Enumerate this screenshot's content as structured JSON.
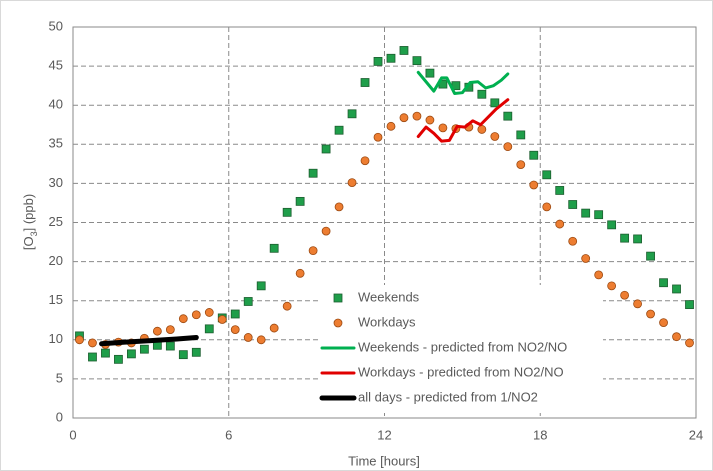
{
  "chart_data": {
    "type": "scatter",
    "xlabel": "Time [hours]",
    "ylabel": [
      "[O",
      "3",
      "] (ppb)"
    ],
    "xlim": [
      0,
      24
    ],
    "xticks": [
      0,
      6,
      12,
      18,
      24
    ],
    "ylim": [
      0,
      50
    ],
    "yticks": [
      0,
      5,
      10,
      15,
      20,
      25,
      30,
      35,
      40,
      45,
      50
    ],
    "grid": true,
    "legend": "lower center",
    "series": [
      {
        "name": "Weekends",
        "color": "#1f9e4a",
        "marker": "square",
        "x": [
          0.25,
          0.75,
          1.25,
          1.75,
          2.25,
          2.75,
          3.25,
          3.75,
          4.25,
          4.75,
          5.25,
          5.75,
          6.25,
          6.75,
          7.25,
          7.75,
          8.25,
          8.75,
          9.25,
          9.75,
          10.25,
          10.75,
          11.25,
          11.75,
          12.25,
          12.75,
          13.25,
          13.75,
          14.25,
          14.75,
          15.25,
          15.75,
          16.25,
          16.75,
          17.25,
          17.75,
          18.25,
          18.75,
          19.25,
          19.75,
          20.25,
          20.75,
          21.25,
          21.75,
          22.25,
          22.75,
          23.25,
          23.75
        ],
        "values": [
          10.5,
          7.8,
          8.3,
          7.5,
          8.2,
          8.8,
          9.3,
          9.2,
          8.1,
          8.4,
          11.4,
          12.8,
          13.3,
          14.9,
          16.9,
          21.7,
          26.3,
          27.7,
          31.3,
          34.4,
          36.8,
          38.9,
          42.9,
          45.6,
          46.0,
          47.0,
          45.7,
          44.1,
          42.7,
          42.5,
          42.3,
          41.4,
          40.3,
          38.6,
          36.2,
          33.6,
          31.1,
          29.1,
          27.3,
          26.2,
          26.0,
          24.7,
          23.0,
          22.9,
          20.7,
          17.3,
          16.5,
          14.5
        ]
      },
      {
        "name": "Workdays",
        "color": "#ed7d31",
        "marker": "circle",
        "x": [
          0.25,
          0.75,
          1.25,
          1.75,
          2.25,
          2.75,
          3.25,
          3.75,
          4.25,
          4.75,
          5.25,
          5.75,
          6.25,
          6.75,
          7.25,
          7.75,
          8.25,
          8.75,
          9.25,
          9.75,
          10.25,
          10.75,
          11.25,
          11.75,
          12.25,
          12.75,
          13.25,
          13.75,
          14.25,
          14.75,
          15.25,
          15.75,
          16.25,
          16.75,
          17.25,
          17.75,
          18.25,
          18.75,
          19.25,
          19.75,
          20.25,
          20.75,
          21.25,
          21.75,
          22.25,
          22.75,
          23.25,
          23.75
        ],
        "values": [
          10.0,
          9.6,
          9.4,
          9.7,
          9.6,
          10.2,
          11.1,
          11.3,
          12.7,
          13.2,
          13.5,
          12.6,
          11.3,
          10.3,
          10.0,
          11.5,
          14.3,
          18.5,
          21.4,
          23.9,
          27.0,
          30.1,
          32.9,
          35.9,
          37.3,
          38.4,
          38.6,
          38.1,
          37.1,
          37.0,
          37.2,
          36.9,
          36.0,
          34.7,
          32.4,
          29.8,
          27.0,
          24.8,
          22.6,
          20.4,
          18.3,
          16.9,
          15.7,
          14.6,
          13.3,
          12.2,
          10.4,
          9.6
        ]
      },
      {
        "name": "Weekends - predicted from NO2/NO",
        "color": "#00b050",
        "marker": "line",
        "line_width": 3,
        "x": [
          13.3,
          13.6,
          13.9,
          14.2,
          14.4,
          14.7,
          15.0,
          15.3,
          15.6,
          15.9,
          16.2,
          16.5,
          16.75
        ],
        "values": [
          44.2,
          43.0,
          41.8,
          43.5,
          43.5,
          41.5,
          41.6,
          42.9,
          43.0,
          42.2,
          42.5,
          43.2,
          44.0
        ]
      },
      {
        "name": "Workdays - predicted from NO2/NO",
        "color": "#e00000",
        "marker": "line",
        "line_width": 3,
        "x": [
          13.3,
          13.6,
          13.9,
          14.2,
          14.5,
          14.8,
          15.1,
          15.4,
          15.7,
          16.0,
          16.3,
          16.75
        ],
        "values": [
          36.0,
          37.2,
          36.4,
          35.4,
          35.5,
          37.3,
          37.2,
          38.0,
          37.5,
          38.5,
          39.5,
          40.7
        ]
      },
      {
        "name": "all days - predicted from 1/NO2",
        "color": "#000000",
        "marker": "line",
        "line_width": 5,
        "x": [
          1.1,
          2.0,
          3.0,
          4.0,
          4.75
        ],
        "values": [
          9.5,
          9.7,
          9.9,
          10.1,
          10.3
        ]
      }
    ]
  }
}
